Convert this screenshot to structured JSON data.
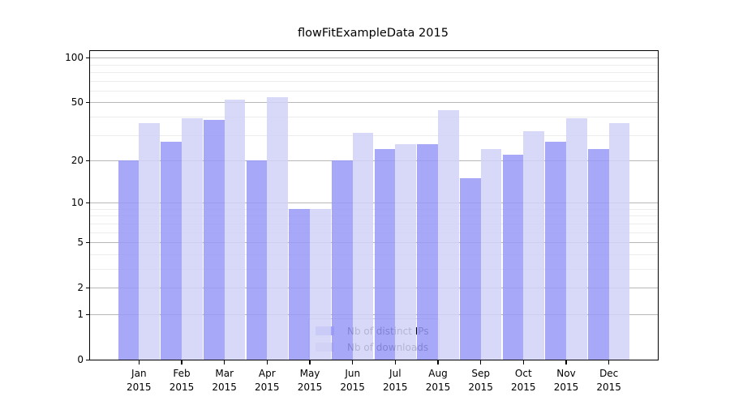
{
  "title": "flowFitExampleData 2015",
  "chart_data": {
    "type": "bar",
    "title": "flowFitExampleData 2015",
    "categories": [
      "Jan",
      "Feb",
      "Mar",
      "Apr",
      "May",
      "Jun",
      "Jul",
      "Aug",
      "Sep",
      "Oct",
      "Nov",
      "Dec"
    ],
    "year_label": "2015",
    "series": [
      {
        "name": "Nb of distinct IPs",
        "color": "#a8a8f8",
        "color_rgba": "rgba(153,153,247,0.85)",
        "values": [
          20,
          27,
          38,
          20,
          9,
          20,
          24,
          26,
          15,
          22,
          27,
          24
        ]
      },
      {
        "name": "Nb of downloads",
        "color": "#d8d8f8",
        "color_rgba": "rgba(209,209,247,0.85)",
        "values": [
          36,
          39,
          52,
          54,
          9,
          31,
          26,
          44,
          24,
          32,
          39,
          36
        ]
      }
    ],
    "yscale": "log1p",
    "ylim": [
      0,
      110.6
    ],
    "y_major_ticks": [
      0,
      1,
      2,
      5,
      10,
      20,
      50,
      100
    ],
    "y_minor_gridlines": [
      3,
      4,
      6,
      7,
      8,
      9,
      30,
      40,
      60,
      70,
      80,
      90
    ],
    "grid": true,
    "legend_position": "inside-lower-center"
  },
  "colors": {
    "background": "#ffffff",
    "spine": "#000000",
    "major_grid": "#b8b8b8",
    "minor_grid": "#ececec",
    "text": "#000000"
  }
}
